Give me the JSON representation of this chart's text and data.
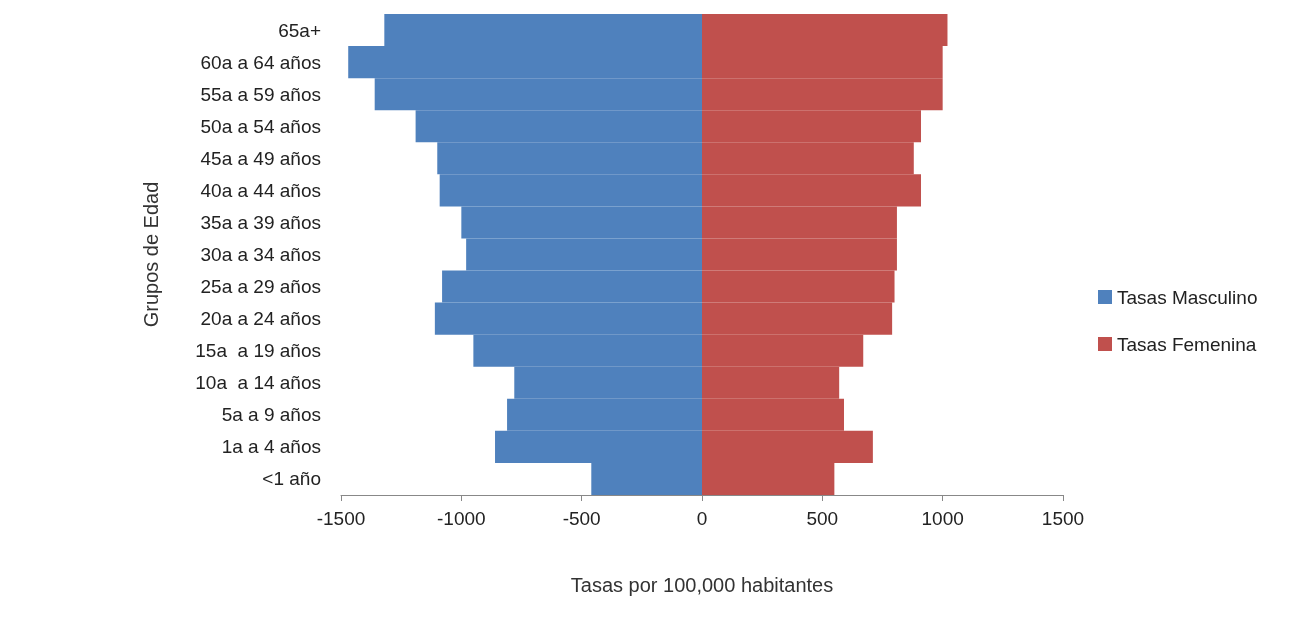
{
  "chart_data": {
    "type": "bar",
    "orientation": "horizontal",
    "stacked": true,
    "xlabel": "Tasas por 100,000 habitantes",
    "ylabel": "Grupos de Edad",
    "categories": [
      "65a+",
      "60a a 64 años",
      "55a a 59 años",
      "50a a 54 años",
      "45a a 49 años",
      "40a a 44 años",
      "35a a 39 años",
      "30a a 34 años",
      "25a a 29 años",
      "20a a 24 años",
      "15a  a 19 años",
      "10a  a 14 años",
      "5a a 9 años",
      "1a a 4 años",
      "<1 año"
    ],
    "series": [
      {
        "name": "Tasas Masculino",
        "color": "#4f81bd",
        "values": [
          -1320,
          -1470,
          -1360,
          -1190,
          -1100,
          -1090,
          -1000,
          -980,
          -1080,
          -1110,
          -950,
          -780,
          -810,
          -860,
          -460
        ]
      },
      {
        "name": "Tasas Femenina",
        "color": "#c0504d",
        "values": [
          1020,
          1000,
          1000,
          910,
          880,
          910,
          810,
          810,
          800,
          790,
          670,
          570,
          590,
          710,
          550
        ]
      }
    ],
    "xlim": [
      -1500,
      1500
    ],
    "xticks": [
      -1500,
      -1000,
      -500,
      0,
      500,
      1000,
      1500
    ],
    "grid": false,
    "legend": "right"
  }
}
